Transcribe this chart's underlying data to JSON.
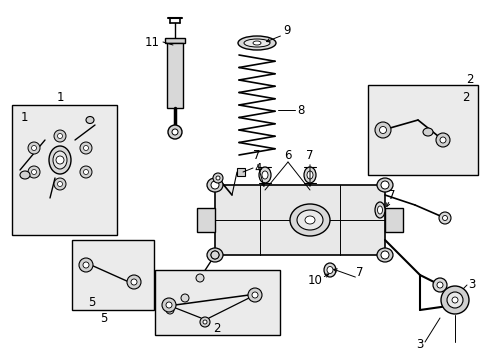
{
  "background_color": "#ffffff",
  "line_color": "#000000",
  "fill_light": "#e8e8e8",
  "fill_box": "#ebebeb",
  "label_fs": 8.5,
  "title_fs": 7,
  "fig_w": 4.89,
  "fig_h": 3.6,
  "dpi": 100
}
